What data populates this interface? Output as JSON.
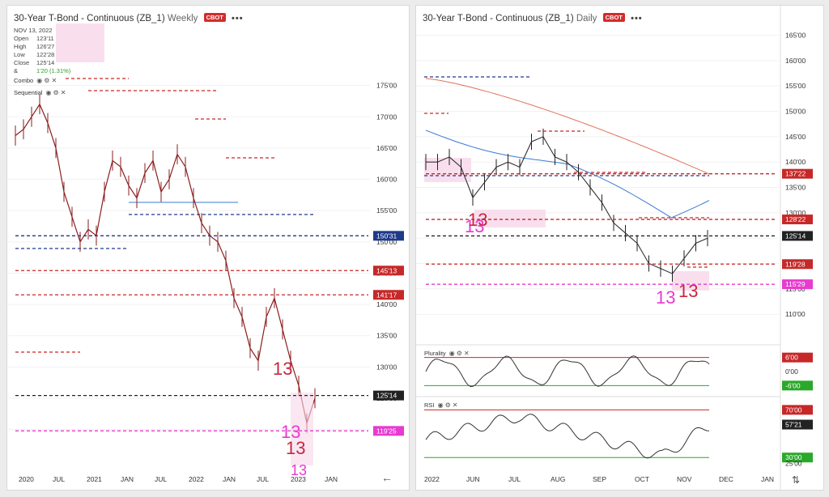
{
  "left": {
    "title": "30-Year T-Bond - Continuous (ZB_1)",
    "timeframe": "Weekly",
    "exchange": "CBOT",
    "ohlc": {
      "date": "NOV 13, 2022",
      "open_label": "Open",
      "open": "123'11",
      "high_label": "High",
      "high": "126'27",
      "low_label": "Low",
      "low": "122'28",
      "close_label": "Close",
      "close": "125'14",
      "change": "1'20 (1.31%)"
    },
    "indicators": [
      "Combo",
      "Sequential"
    ],
    "annotations": {
      "c1": "13",
      "c2": "13",
      "c3": "13",
      "c4": "13"
    }
  },
  "right": {
    "title": "30-Year T-Bond - Continuous (ZB_1)",
    "timeframe": "Daily",
    "exchange": "CBOT",
    "annotations": {
      "c1": "13",
      "c2": "13",
      "c3": "13",
      "c4": "13"
    },
    "plurality_label": "Plurality",
    "rsi_label": "RSI"
  },
  "chart_data": [
    {
      "type": "line",
      "panel": "left",
      "yticks": [
        "175'00",
        "170'00",
        "165'00",
        "160'00",
        "155'00",
        "150'00",
        "145'00",
        "140'00",
        "135'00",
        "130'00",
        "125'00",
        "120'00"
      ],
      "ytick_values": [
        175,
        170,
        165,
        160,
        155,
        150,
        145,
        140,
        135,
        130,
        125,
        120
      ],
      "ylim": [
        114,
        180
      ],
      "xticks": [
        "2020",
        "JUL",
        "2021",
        "JAN",
        "JUL",
        "2022",
        "JAN",
        "JUL",
        "2023",
        "JAN"
      ],
      "price_tags": [
        {
          "label": "150'31",
          "value": 150.97,
          "color": "#1e3a8a"
        },
        {
          "label": "145'13",
          "value": 145.41,
          "color": "#c62828"
        },
        {
          "label": "141'17",
          "value": 141.53,
          "color": "#c62828"
        },
        {
          "label": "125'14",
          "value": 125.44,
          "color": "#222222"
        },
        {
          "label": "119'25",
          "value": 119.78,
          "color": "#e83ad0"
        }
      ],
      "x": [
        0,
        4,
        8,
        12,
        16,
        20,
        24,
        28,
        32,
        36,
        40,
        44,
        48,
        52,
        56,
        60,
        64,
        68,
        72,
        76,
        80,
        84,
        88,
        92,
        96,
        100,
        104,
        108,
        112,
        116,
        120,
        124,
        128,
        132,
        136,
        140,
        144,
        148
      ],
      "values": [
        167,
        168,
        170,
        172,
        169,
        165,
        158,
        154,
        150,
        152,
        151,
        158,
        163,
        162,
        159,
        157,
        161,
        163,
        158,
        160,
        164,
        162,
        157,
        153,
        151,
        150,
        147,
        141,
        138,
        133,
        131,
        138,
        141,
        136,
        131,
        127,
        121,
        125
      ]
    },
    {
      "type": "line",
      "panel": "right",
      "yticks": [
        "165'00",
        "160'00",
        "155'00",
        "150'00",
        "145'00",
        "140'00",
        "135'00",
        "130'00",
        "125'00",
        "120'00",
        "115'00",
        "110'00"
      ],
      "ytick_values": [
        165,
        160,
        155,
        150,
        145,
        140,
        135,
        130,
        125,
        120,
        115,
        110
      ],
      "ylim": [
        107,
        167
      ],
      "xticks": [
        "2022",
        "JUN",
        "JUL",
        "AUG",
        "SEP",
        "OCT",
        "NOV",
        "DEC",
        "JAN"
      ],
      "price_tags": [
        {
          "label": "137'22",
          "value": 137.69,
          "color": "#c62828"
        },
        {
          "label": "128'22",
          "value": 128.69,
          "color": "#c62828"
        },
        {
          "label": "125'14",
          "value": 125.44,
          "color": "#222222"
        },
        {
          "label": "119'28",
          "value": 119.88,
          "color": "#c62828"
        },
        {
          "label": "115'29",
          "value": 115.91,
          "color": "#e83ad0"
        }
      ],
      "x": [
        0,
        5,
        10,
        15,
        20,
        25,
        30,
        35,
        40,
        45,
        50,
        55,
        60,
        65,
        70,
        75,
        80,
        85,
        90,
        95,
        100,
        105,
        110,
        115,
        120
      ],
      "values": [
        140,
        140,
        141,
        139,
        133,
        136,
        139,
        140,
        139,
        144,
        145,
        141,
        140,
        138,
        135,
        132,
        128,
        126,
        124,
        120,
        119,
        118,
        121,
        124,
        125
      ]
    },
    {
      "type": "line",
      "panel": "plurality",
      "yticks": [
        "6'00",
        "0'00",
        "-6'00"
      ],
      "ytick_values": [
        6,
        0,
        -6
      ],
      "ylim": [
        -9,
        9
      ]
    },
    {
      "type": "line",
      "panel": "rsi",
      "yticks": [
        "70'00",
        "57'21",
        "30'00",
        "25'00"
      ],
      "ytick_values": [
        70,
        57.66,
        30,
        25
      ],
      "ylim": [
        22,
        75
      ]
    }
  ]
}
